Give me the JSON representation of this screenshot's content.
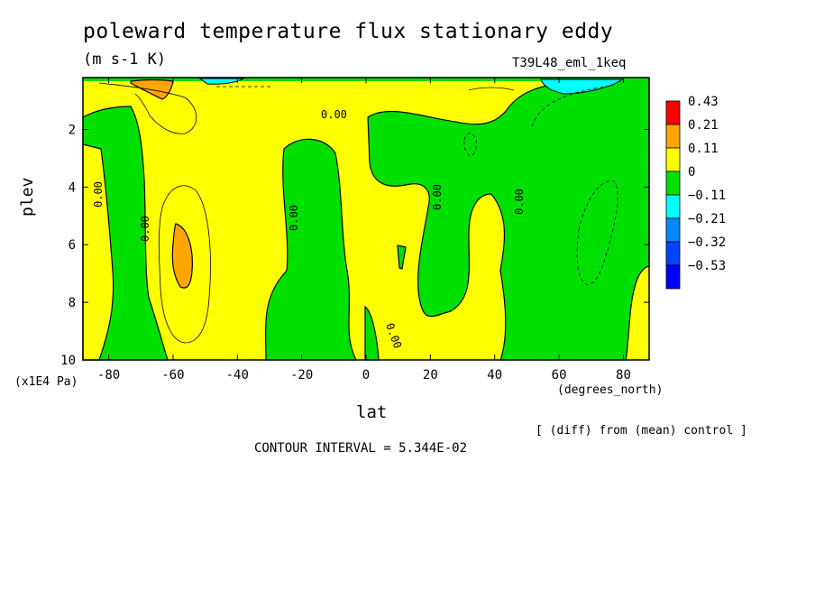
{
  "header": {
    "title": "poleward temperature flux stationary eddy",
    "units": "(m s-1 K)",
    "run": "T39L48_eml_1keq"
  },
  "footer": {
    "diff_note": "[ (diff) from (mean) control ]",
    "contour_interval": "CONTOUR INTERVAL = 5.344E-02"
  },
  "colors": {
    "c043": "#ff0000",
    "c021": "#ffa500",
    "c011": "#ffff00",
    "c000": "#00e000",
    "cm011": "#00ffff",
    "cm021": "#0088ff",
    "cm032": "#0044ff",
    "cm053": "#0000ff"
  },
  "chart_data": {
    "type": "contour",
    "xlabel": "lat",
    "xunits": "(degrees_north)",
    "ylabel": "plev",
    "yunits": "(x1E4 Pa)",
    "xlim": [
      -88,
      88
    ],
    "ylim": [
      10,
      0.2
    ],
    "xticks": [
      -80,
      -60,
      -40,
      -20,
      0,
      20,
      40,
      60,
      80
    ],
    "yticks": [
      2,
      4,
      6,
      8,
      10
    ],
    "contour_levels": [
      0.43,
      0.21,
      0.11,
      0,
      -0.11,
      -0.21,
      -0.32,
      -0.53
    ],
    "contour_labels": [
      "0.00",
      "0.00",
      "0.00",
      "0.00",
      "0.00",
      "0.00",
      "0.00"
    ],
    "colorbar": [
      {
        "label": "0.43",
        "color": "#ff0000"
      },
      {
        "label": "0.21",
        "color": "#ffa500"
      },
      {
        "label": "0.11",
        "color": "#ffff00"
      },
      {
        "label": "0",
        "color": "#00e000"
      },
      {
        "label": "-0.11",
        "color": "#00ffff"
      },
      {
        "label": "-0.21",
        "color": "#0088ff"
      },
      {
        "label": "-0.32",
        "color": "#0044ff"
      },
      {
        "label": "-0.53",
        "color": "#0000ff"
      }
    ]
  }
}
